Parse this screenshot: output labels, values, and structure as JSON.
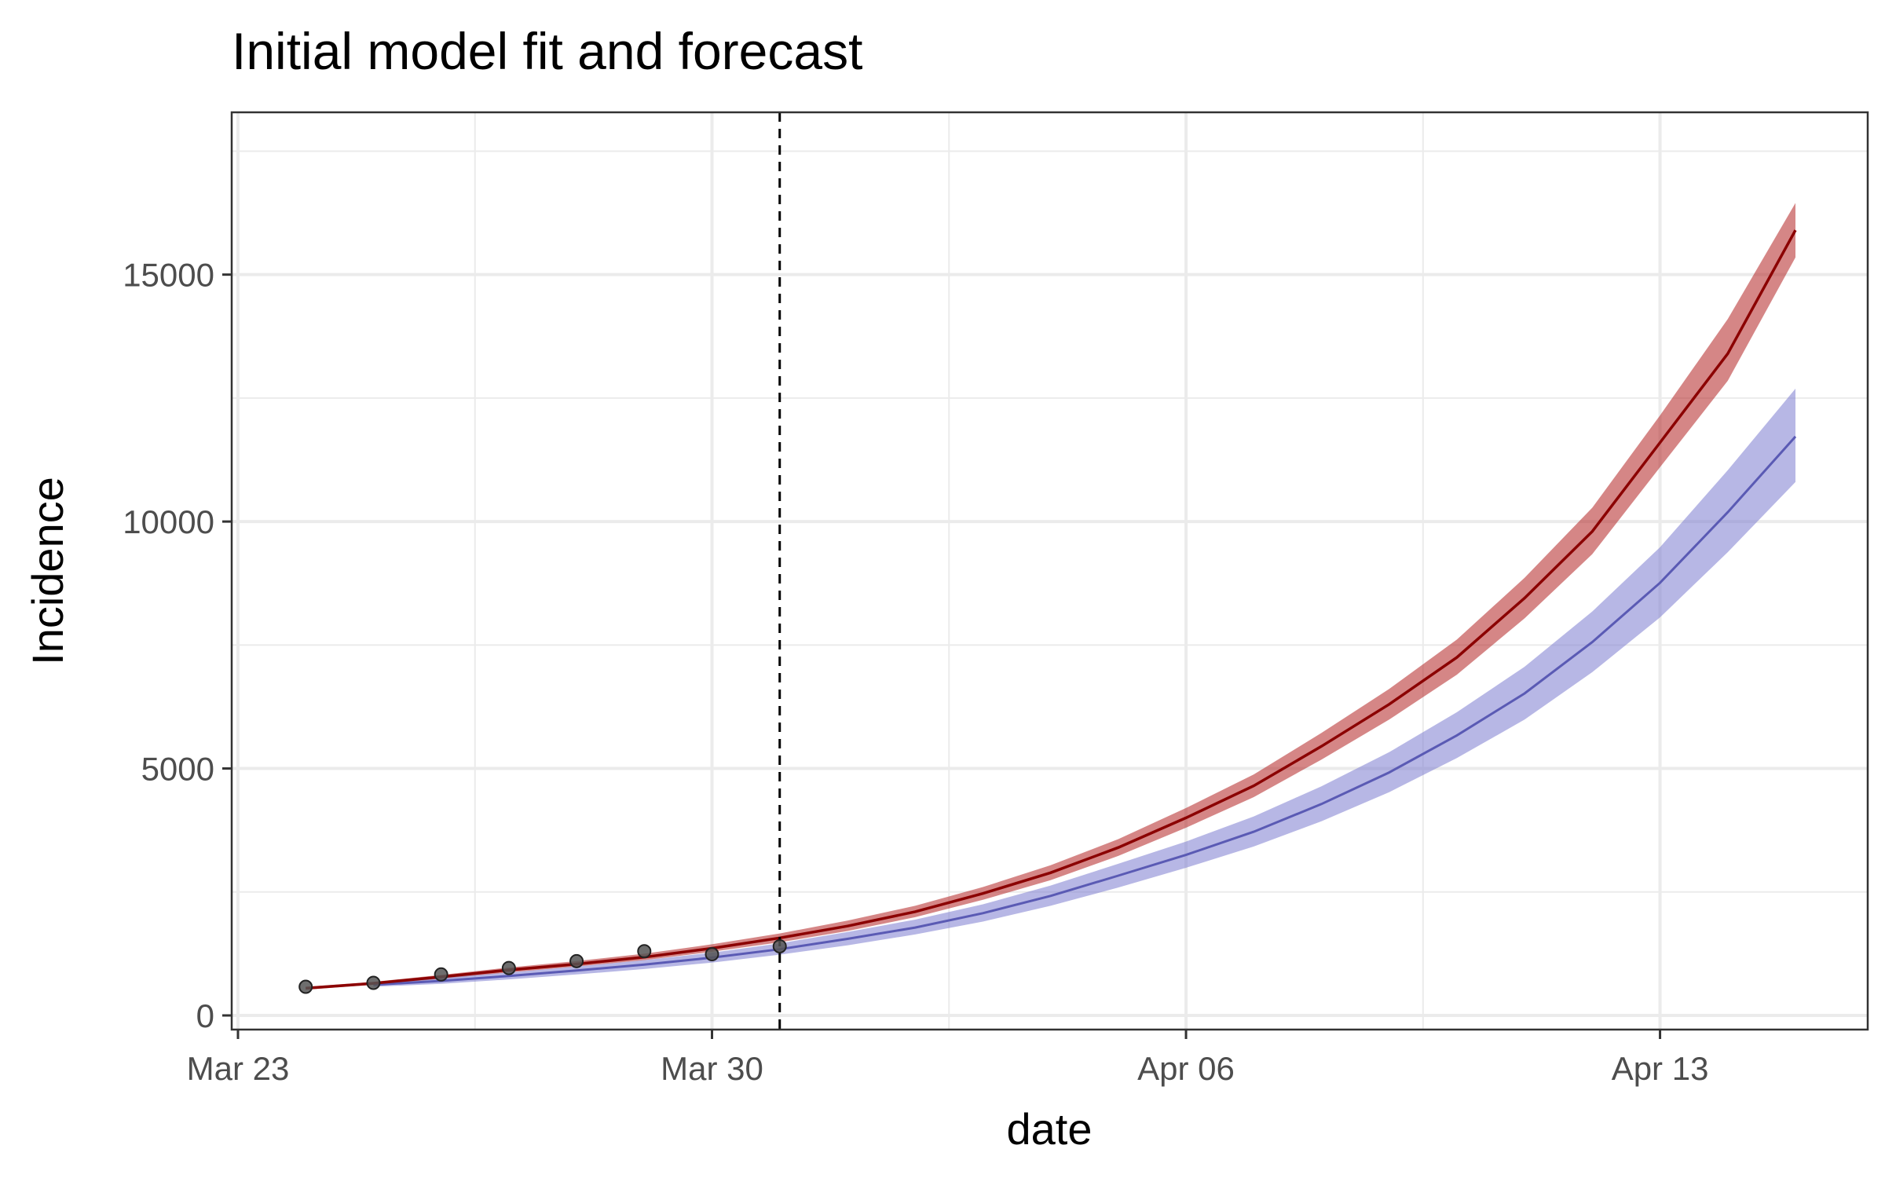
{
  "chart_data": {
    "type": "line",
    "title": "Initial model fit and forecast",
    "xlabel": "date",
    "ylabel": "Incidence",
    "x_ticks": [
      "Mar 23",
      "Mar 30",
      "Apr 06",
      "Apr 13"
    ],
    "y_ticks": [
      0,
      5000,
      10000,
      15000
    ],
    "xlim": [
      "2020-03-23",
      "2020-04-15"
    ],
    "ylim": [
      0,
      18000
    ],
    "grid": true,
    "cutoff_date": "2020-03-31",
    "observed": {
      "x": [
        "2020-03-24",
        "2020-03-25",
        "2020-03-26",
        "2020-03-27",
        "2020-03-28",
        "2020-03-29",
        "2020-03-30",
        "2020-03-31"
      ],
      "y": [
        580,
        660,
        830,
        960,
        1100,
        1300,
        1240,
        1400
      ]
    },
    "series": [
      {
        "color": "#8b0000",
        "band_color": "#b22222",
        "x": [
          "2020-03-24",
          "2020-03-25",
          "2020-03-26",
          "2020-03-27",
          "2020-03-28",
          "2020-03-29",
          "2020-03-30",
          "2020-03-31",
          "2020-04-01",
          "2020-04-02",
          "2020-04-03",
          "2020-04-04",
          "2020-04-05",
          "2020-04-06",
          "2020-04-07",
          "2020-04-08",
          "2020-04-09",
          "2020-04-10",
          "2020-04-11",
          "2020-04-12",
          "2020-04-13",
          "2020-04-14",
          "2020-04-15"
        ],
        "y": [
          550,
          650,
          780,
          920,
          1040,
          1180,
          1360,
          1570,
          1810,
          2100,
          2470,
          2890,
          3400,
          4000,
          4650,
          5450,
          6300,
          7250,
          8450,
          9800,
          11600,
          13400,
          15900
        ],
        "lower": [
          520,
          620,
          740,
          870,
          990,
          1120,
          1290,
          1480,
          1710,
          1990,
          2340,
          2740,
          3230,
          3800,
          4420,
          5180,
          5990,
          6900,
          8040,
          9340,
          11100,
          12850,
          15350
        ],
        "upper": [
          580,
          680,
          820,
          970,
          1100,
          1250,
          1440,
          1660,
          1920,
          2220,
          2600,
          3040,
          3570,
          4200,
          4880,
          5720,
          6610,
          7610,
          8860,
          10280,
          12150,
          14100,
          16450
        ]
      },
      {
        "color": "#5a5ab4",
        "band_color": "#7b7bd0",
        "x": [
          "2020-03-25",
          "2020-03-26",
          "2020-03-27",
          "2020-03-28",
          "2020-03-29",
          "2020-03-30",
          "2020-03-31",
          "2020-04-01",
          "2020-04-02",
          "2020-04-03",
          "2020-04-04",
          "2020-04-05",
          "2020-04-06",
          "2020-04-07",
          "2020-04-08",
          "2020-04-09",
          "2020-04-10",
          "2020-04-11",
          "2020-04-12",
          "2020-04-13",
          "2020-04-14",
          "2020-04-15"
        ],
        "y": [
          620,
          700,
          800,
          910,
          1030,
          1170,
          1340,
          1550,
          1780,
          2070,
          2420,
          2830,
          3250,
          3720,
          4280,
          4920,
          5670,
          6520,
          7560,
          8760,
          10190,
          11720
        ],
        "lower": [
          580,
          640,
          730,
          830,
          940,
          1070,
          1230,
          1420,
          1640,
          1900,
          2220,
          2590,
          2990,
          3420,
          3930,
          4520,
          5210,
          5990,
          6950,
          8060,
          9380,
          10800
        ],
        "upper": [
          660,
          760,
          870,
          990,
          1120,
          1270,
          1460,
          1690,
          1940,
          2250,
          2630,
          3070,
          3520,
          4030,
          4640,
          5330,
          6140,
          7060,
          8180,
          9480,
          11040,
          12690
        ]
      }
    ]
  }
}
